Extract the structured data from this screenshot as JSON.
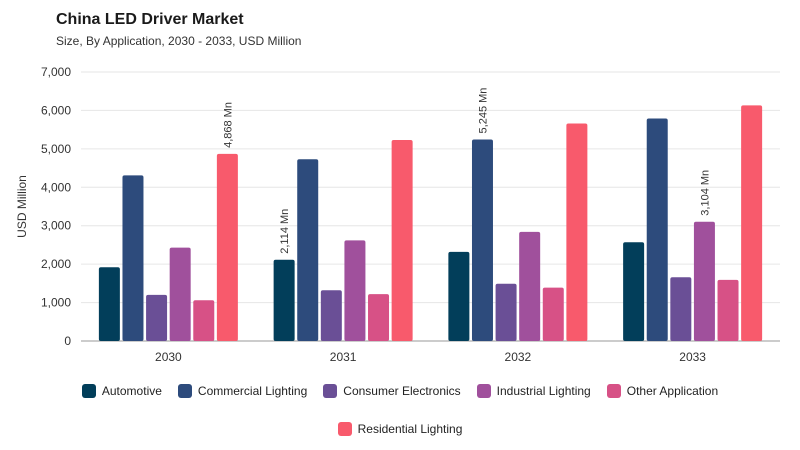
{
  "header": {
    "title": "China LED Driver Market",
    "subtitle": "Size, By Application, 2030 - 2033, USD Million"
  },
  "chart_data": {
    "type": "bar",
    "title": "China LED Driver Market",
    "subtitle": "Size, By Application, 2030 - 2033, USD Million",
    "xlabel": "",
    "ylabel": "USD Million",
    "ylim": [
      0,
      7000
    ],
    "yticks": [
      0,
      1000,
      2000,
      3000,
      4000,
      5000,
      6000,
      7000
    ],
    "ytick_labels": [
      "0",
      "1,000",
      "2,000",
      "3,000",
      "4,000",
      "5,000",
      "6,000",
      "7,000"
    ],
    "grid": true,
    "legend_position": "bottom",
    "categories": [
      "2030",
      "2031",
      "2032",
      "2033"
    ],
    "series": [
      {
        "name": "Automotive",
        "color": "#023e5a",
        "values": [
          1920,
          2114,
          2320,
          2570
        ]
      },
      {
        "name": "Commercial Lighting",
        "color": "#2d4b7c",
        "values": [
          4310,
          4730,
          5245,
          5790
        ]
      },
      {
        "name": "Consumer Electronics",
        "color": "#6a4f96",
        "values": [
          1200,
          1320,
          1490,
          1660
        ]
      },
      {
        "name": "Industrial Lighting",
        "color": "#a0509c",
        "values": [
          2430,
          2620,
          2840,
          3104
        ]
      },
      {
        "name": "Other Application",
        "color": "#d75186",
        "values": [
          1060,
          1220,
          1390,
          1590
        ]
      },
      {
        "name": "Residential Lighting",
        "color": "#f85a6c",
        "values": [
          4868,
          5230,
          5660,
          6130
        ]
      }
    ],
    "annotations": [
      {
        "category": "2030",
        "series": "Residential Lighting",
        "text": "4,868 Mn"
      },
      {
        "category": "2031",
        "series": "Automotive",
        "text": "2,114 Mn"
      },
      {
        "category": "2032",
        "series": "Commercial Lighting",
        "text": "5,245 Mn"
      },
      {
        "category": "2033",
        "series": "Industrial Lighting",
        "text": "3,104 Mn"
      }
    ]
  }
}
